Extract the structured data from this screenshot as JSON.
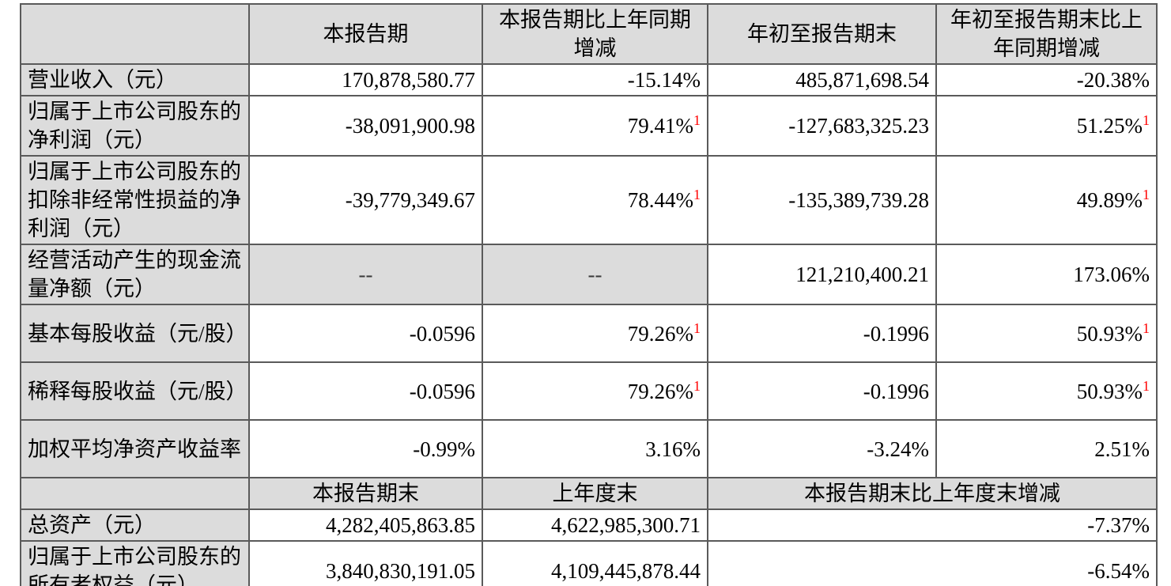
{
  "colors": {
    "shaded_cell_bg": "#dcdcdc",
    "border": "#5a5a5a",
    "footnote_red": "#ff0000",
    "text": "#000000"
  },
  "header_row_1": {
    "col_blank": "",
    "col_current_period": "本报告期",
    "col_current_period_yoy_change": "本报告期比上年同期增减",
    "col_ytd": "年初至报告期末",
    "col_ytd_yoy_change": "年初至报告期末比上年同期增减"
  },
  "rows": [
    {
      "label": "营业收入（元）",
      "current": "170,878,580.77",
      "current_chg": "-15.14%",
      "ytd": "485,871,698.54",
      "ytd_chg": "-20.38%"
    },
    {
      "label": "归属于上市公司股东的净利润（元）",
      "current": "-38,091,900.98",
      "current_chg": "79.41%",
      "current_chg_sup": "1",
      "ytd": "-127,683,325.23",
      "ytd_chg": "51.25%",
      "ytd_chg_sup": "1"
    },
    {
      "label": "归属于上市公司股东的扣除非经常性损益的净利润（元）",
      "current": "-39,779,349.67",
      "current_chg": "78.44%",
      "current_chg_sup": "1",
      "ytd": "-135,389,739.28",
      "ytd_chg": "49.89%",
      "ytd_chg_sup": "1"
    },
    {
      "label": "经营活动产生的现金流量净额（元）",
      "current": "--",
      "current_chg": "--",
      "ytd": "121,210,400.21",
      "ytd_chg": "173.06%"
    },
    {
      "label": "基本每股收益（元/股）",
      "current": "-0.0596",
      "current_chg": "79.26%",
      "current_chg_sup": "1",
      "ytd": "-0.1996",
      "ytd_chg": "50.93%",
      "ytd_chg_sup": "1"
    },
    {
      "label": "稀释每股收益（元/股）",
      "current": "-0.0596",
      "current_chg": "79.26%",
      "current_chg_sup": "1",
      "ytd": "-0.1996",
      "ytd_chg": "50.93%",
      "ytd_chg_sup": "1"
    },
    {
      "label": "加权平均净资产收益率",
      "current": "-0.99%",
      "current_chg": "3.16%",
      "ytd": "-3.24%",
      "ytd_chg": "2.51%"
    }
  ],
  "header_row_2": {
    "col_blank": "",
    "col_end_of_period": "本报告期末",
    "col_end_of_prior_year": "上年度末",
    "col_change_vs_prior_year_end": "本报告期末比上年度末增减"
  },
  "bottom_rows": [
    {
      "label": "总资产（元）",
      "end_of_period": "4,282,405,863.85",
      "end_of_prior_year": "4,622,985,300.71",
      "change": "-7.37%"
    },
    {
      "label": "归属于上市公司股东的所有者权益（元）",
      "end_of_period": "3,840,830,191.05",
      "end_of_prior_year": "4,109,445,878.44",
      "change": "-6.54%"
    }
  ]
}
